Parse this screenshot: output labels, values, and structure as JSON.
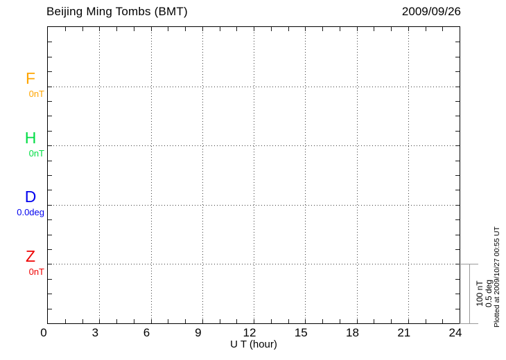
{
  "header": {
    "title": "Beijing Ming Tombs (BMT)",
    "date": "2009/09/26"
  },
  "channels": [
    {
      "letter": "F",
      "baseline_label": "0nT",
      "color": "#FFA500"
    },
    {
      "letter": "H",
      "baseline_label": "0nT",
      "color": "#00DD44"
    },
    {
      "letter": "D",
      "baseline_label": "0.0deg",
      "color": "#0000EE"
    },
    {
      "letter": "Z",
      "baseline_label": "0nT",
      "color": "#EE0000"
    }
  ],
  "x_axis": {
    "label": "U T (hour)",
    "ticks": [
      "0",
      "3",
      "6",
      "9",
      "12",
      "15",
      "18",
      "21",
      "24"
    ]
  },
  "scale_bar": {
    "label_line1": "100 nT",
    "label_line2": "0.5 deg"
  },
  "footer_note": "Plotted at 2009/10/27 00:55 UT",
  "chart_data": {
    "type": "line",
    "title": "Beijing Ming Tombs (BMT)",
    "date": "2009/09/26",
    "xlabel": "U T (hour)",
    "x_range": [
      0,
      24
    ],
    "x_tick_interval_hours": 3,
    "x_minor_tick_interval_hours": 1,
    "grid": "dotted",
    "series": [
      {
        "name": "F",
        "unit": "nT",
        "baseline_value": 0,
        "color": "#FFA500",
        "values": []
      },
      {
        "name": "H",
        "unit": "nT",
        "baseline_value": 0,
        "color": "#00DD44",
        "values": []
      },
      {
        "name": "D",
        "unit": "deg",
        "baseline_value": 0.0,
        "color": "#0000EE",
        "values": []
      },
      {
        "name": "Z",
        "unit": "nT",
        "baseline_value": 0,
        "color": "#EE0000",
        "values": []
      }
    ],
    "scale_per_division": {
      "nT": 100,
      "deg": 0.5
    }
  }
}
